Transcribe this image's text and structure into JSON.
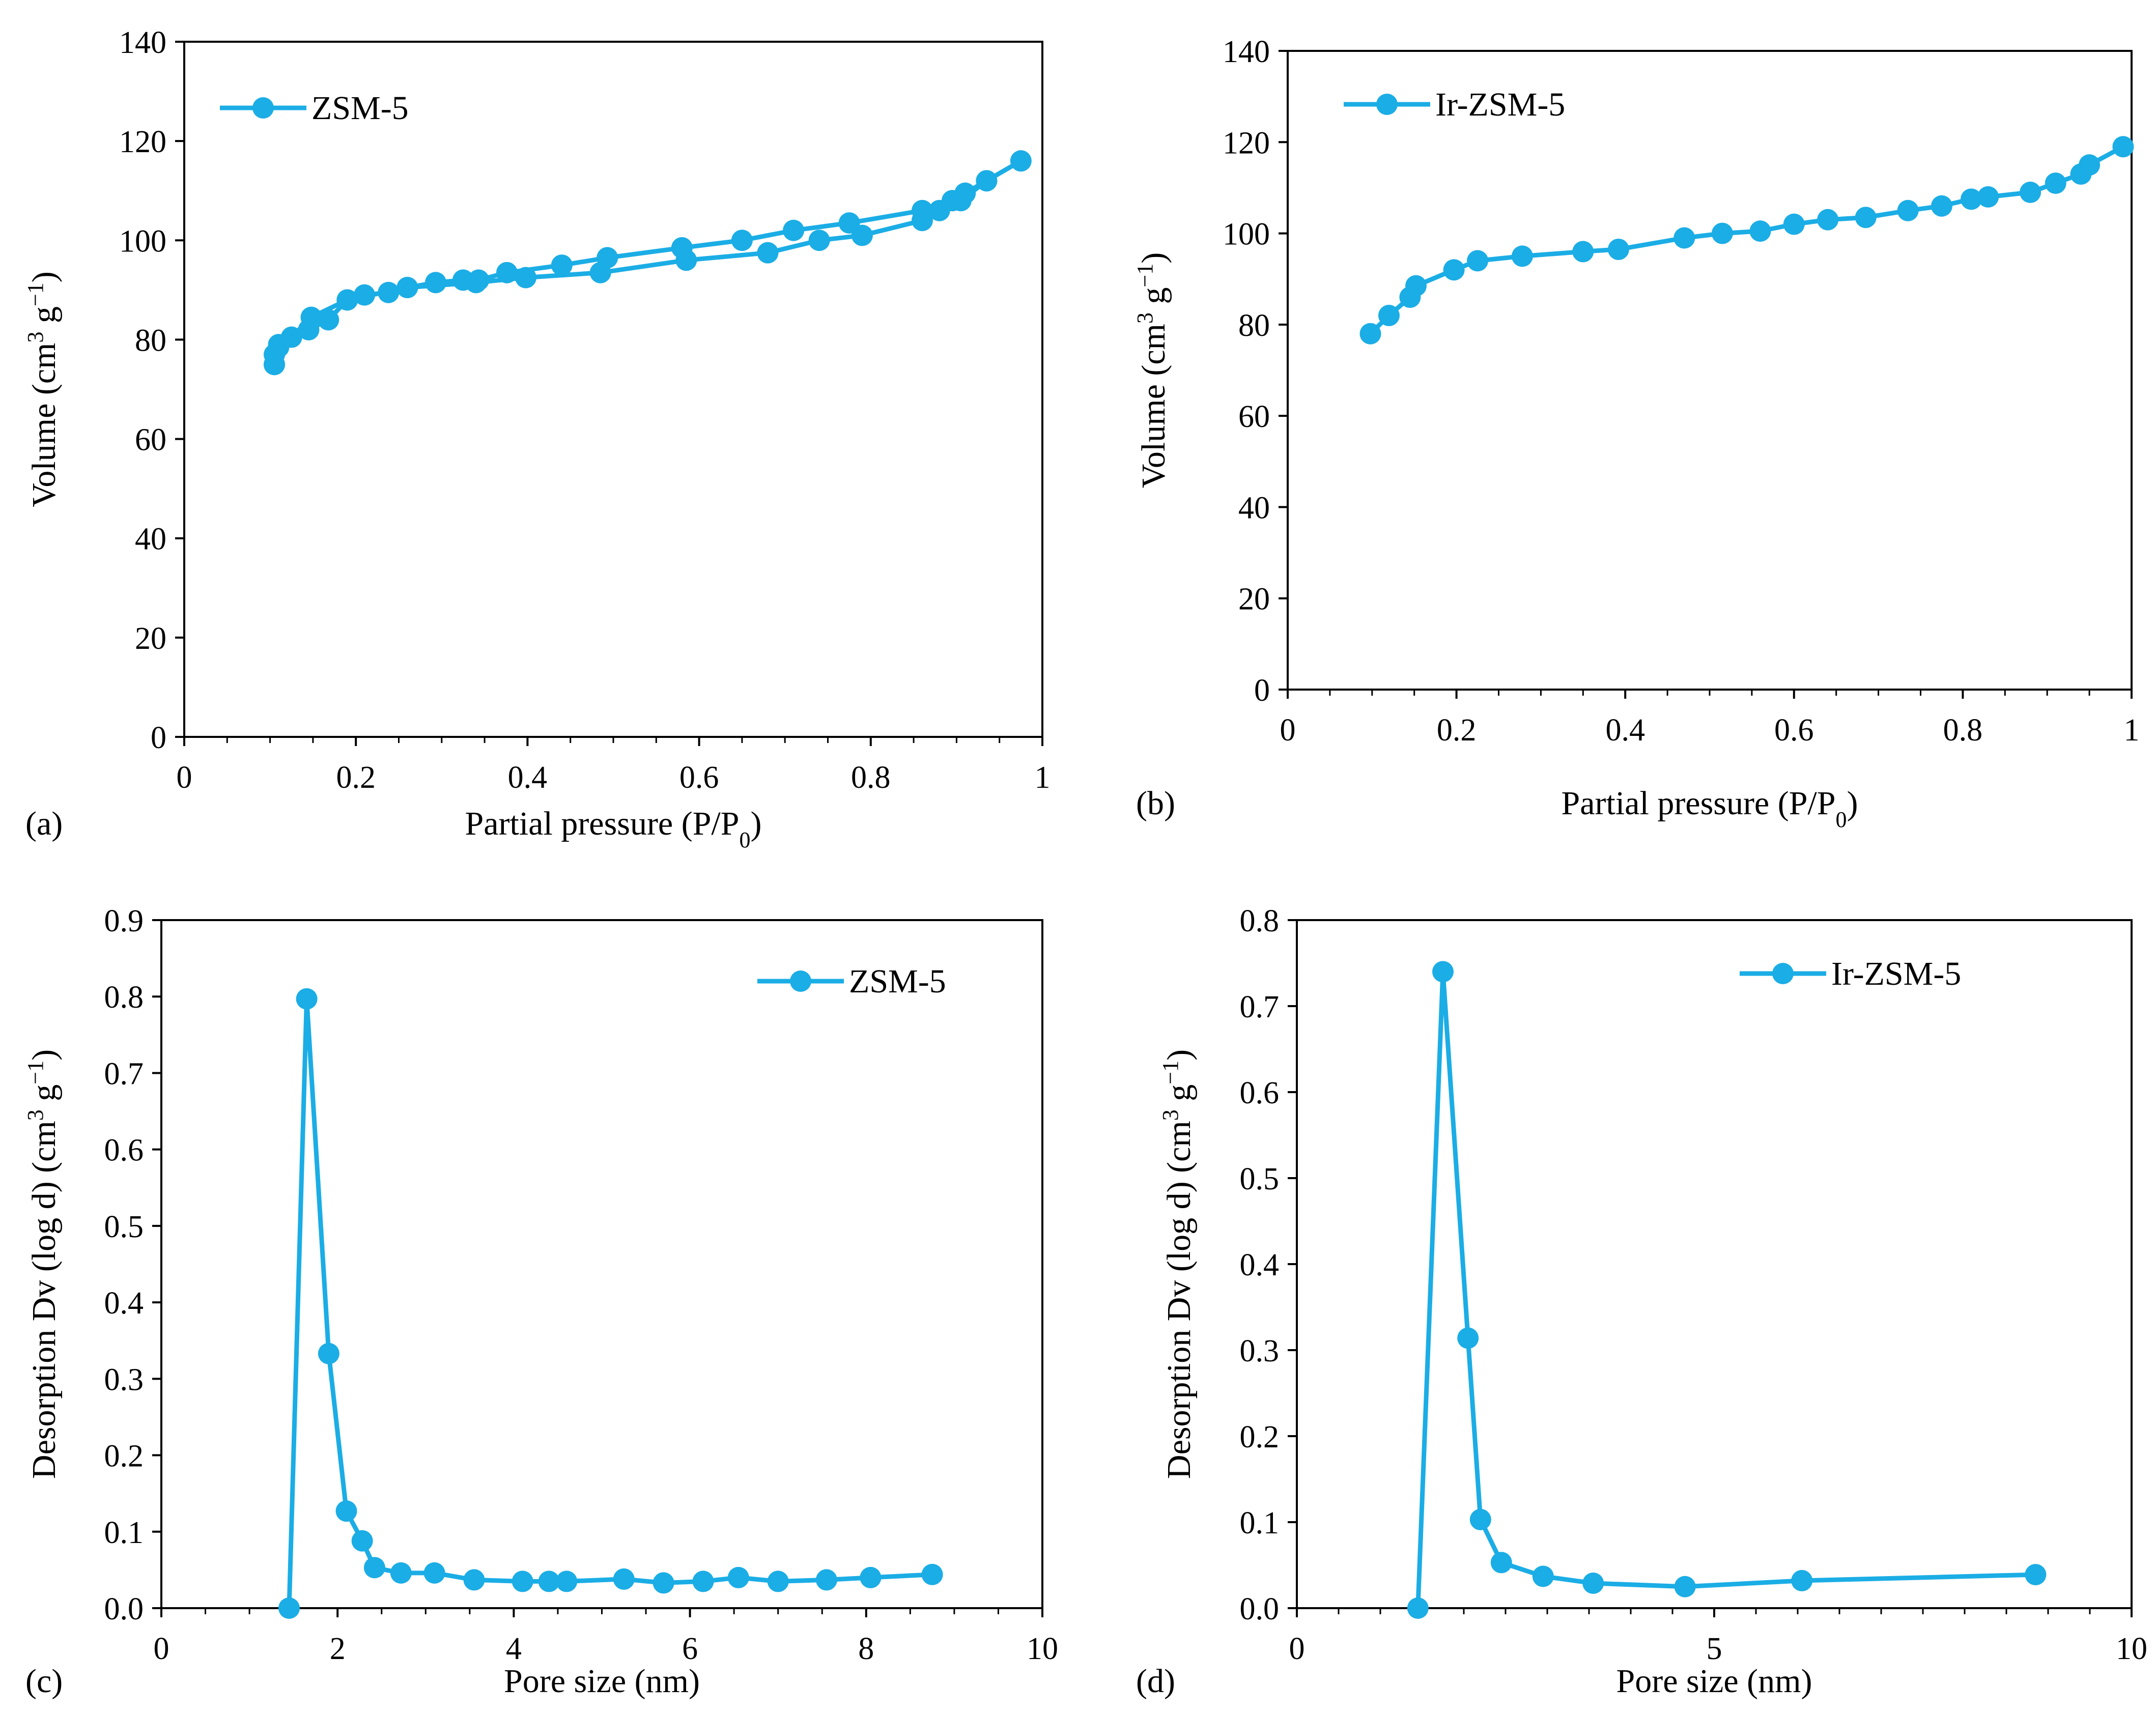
{
  "colors": {
    "series": "#1BADE5",
    "axis": "#000000",
    "background": "#ffffff"
  },
  "chart_data": [
    {
      "type": "line",
      "panel_label": "(a)",
      "xlabel": "Partial pressure (P/P",
      "xlabel_sub": "0",
      "xlabel_end": ")",
      "ylabel": "Volume (cm",
      "ylabel_sup1": "3",
      "ylabel_mid": " g",
      "ylabel_sup2": "−1",
      "ylabel_end": ")",
      "xlim": [
        0,
        1
      ],
      "ylim": [
        0,
        140
      ],
      "xticks": [
        0,
        0.2,
        0.4,
        0.6,
        0.8,
        1
      ],
      "xtick_labels": [
        "0",
        "0.2",
        "0.4",
        "0.6",
        "0.8",
        "1"
      ],
      "yticks": [
        0,
        20,
        40,
        60,
        80,
        100,
        120,
        140
      ],
      "ytick_labels": [
        "0",
        "20",
        "40",
        "60",
        "80",
        "100",
        "120",
        "140"
      ],
      "legend_position": "top-left",
      "series": [
        {
          "name": "ZSM-5",
          "x": [
            0.105,
            0.105,
            0.11,
            0.125,
            0.148,
            0.19,
            0.21,
            0.238,
            0.26,
            0.293,
            0.325,
            0.343,
            0.376,
            0.44,
            0.493,
            0.58,
            0.65,
            0.71,
            0.775,
            0.86,
            0.895,
            0.91,
            0.935,
            0.975,
            0.935,
            0.905,
            0.88,
            0.86,
            0.79,
            0.74,
            0.68,
            0.585,
            0.485,
            0.398,
            0.34,
            0.26,
            0.19,
            0.168,
            0.145,
            0.11,
            0.105
          ],
          "y": [
            75,
            77,
            79,
            80.5,
            84.5,
            88,
            89,
            89.5,
            90.5,
            91.5,
            92,
            92,
            93.5,
            95,
            96.5,
            98.5,
            100,
            102,
            103.5,
            106,
            108,
            109.5,
            112,
            116,
            112,
            108,
            106,
            104,
            101,
            100,
            97.5,
            96,
            93.5,
            92.5,
            91.5,
            90.5,
            88,
            84,
            82,
            78.5,
            75
          ]
        }
      ]
    },
    {
      "type": "line",
      "panel_label": "(b)",
      "xlabel": "Partial pressure (P/P",
      "xlabel_sub": "0",
      "xlabel_end": ")",
      "ylabel": "Volume (cm",
      "ylabel_sup1": "3",
      "ylabel_mid": " g",
      "ylabel_sup2": "−1",
      "ylabel_end": ")",
      "xlim": [
        0,
        1
      ],
      "ylim": [
        0,
        140
      ],
      "xticks": [
        0,
        0.2,
        0.4,
        0.6,
        0.8,
        1
      ],
      "xtick_labels": [
        "0",
        "0.2",
        "0.4",
        "0.6",
        "0.8",
        "1"
      ],
      "yticks": [
        0,
        20,
        40,
        60,
        80,
        100,
        120,
        140
      ],
      "ytick_labels": [
        "0",
        "20",
        "40",
        "60",
        "80",
        "100",
        "120",
        "140"
      ],
      "legend_position": "top-left",
      "series": [
        {
          "name": "Ir-ZSM-5",
          "x": [
            0.098,
            0.12,
            0.145,
            0.152,
            0.197,
            0.225,
            0.278,
            0.35,
            0.392,
            0.47,
            0.515,
            0.56,
            0.6,
            0.64,
            0.685,
            0.735,
            0.775,
            0.81,
            0.83,
            0.88,
            0.91,
            0.94,
            0.95,
            0.99
          ],
          "y": [
            78,
            82,
            86,
            88.5,
            92,
            94,
            95,
            96,
            96.5,
            99,
            100,
            100.5,
            102,
            103,
            103.5,
            105,
            106,
            107.5,
            108,
            109,
            111,
            113,
            115,
            119
          ]
        }
      ]
    },
    {
      "type": "line",
      "panel_label": "(c)",
      "xlabel": "Pore size (nm)",
      "ylabel": "Desorption Dv (log d) (cm",
      "ylabel_sup1": "3",
      "ylabel_mid": " g",
      "ylabel_sup2": "−1",
      "ylabel_end": ")",
      "xlim": [
        0,
        10
      ],
      "ylim": [
        0,
        0.9
      ],
      "xticks": [
        0,
        2,
        4,
        6,
        8,
        10
      ],
      "xtick_labels": [
        "0",
        "2",
        "4",
        "6",
        "8",
        "10"
      ],
      "yticks": [
        0,
        0.1,
        0.2,
        0.3,
        0.4,
        0.5,
        0.6,
        0.7,
        0.8,
        0.9
      ],
      "ytick_labels": [
        "0.0",
        "0.1",
        "0.2",
        "0.3",
        "0.4",
        "0.5",
        "0.6",
        "0.7",
        "0.8",
        "0.9"
      ],
      "legend_position": "top-right",
      "series": [
        {
          "name": "ZSM-5",
          "x": [
            1.45,
            1.65,
            1.9,
            2.1,
            2.28,
            2.42,
            2.72,
            3.1,
            3.55,
            4.1,
            4.4,
            4.6,
            5.25,
            5.7,
            6.15,
            6.55,
            7.0,
            7.55,
            8.05,
            8.75
          ],
          "y": [
            0.0,
            0.797,
            0.333,
            0.127,
            0.088,
            0.053,
            0.046,
            0.046,
            0.037,
            0.035,
            0.035,
            0.035,
            0.038,
            0.033,
            0.035,
            0.04,
            0.035,
            0.037,
            0.04,
            0.044
          ]
        }
      ]
    },
    {
      "type": "line",
      "panel_label": "(d)",
      "xlabel": "Pore size (nm)",
      "ylabel": "Desorption Dv (log d) (cm",
      "ylabel_sup1": "3",
      "ylabel_mid": " g",
      "ylabel_sup2": "−1",
      "ylabel_end": ")",
      "xlim": [
        0,
        10
      ],
      "ylim": [
        0,
        0.8
      ],
      "xticks": [
        0,
        5,
        10
      ],
      "xtick_labels": [
        "0",
        "5",
        "10"
      ],
      "yticks": [
        0,
        0.1,
        0.2,
        0.3,
        0.4,
        0.5,
        0.6,
        0.7,
        0.8
      ],
      "ytick_labels": [
        "0.0",
        "0.1",
        "0.2",
        "0.3",
        "0.4",
        "0.5",
        "0.6",
        "0.7",
        "0.8"
      ],
      "legend_position": "top-right",
      "series": [
        {
          "name": "Ir-ZSM-5",
          "x": [
            1.45,
            1.75,
            2.05,
            2.2,
            2.45,
            2.95,
            3.55,
            4.65,
            6.05,
            8.85
          ],
          "y": [
            0.0,
            0.74,
            0.314,
            0.103,
            0.053,
            0.037,
            0.029,
            0.025,
            0.032,
            0.039
          ]
        }
      ]
    }
  ]
}
